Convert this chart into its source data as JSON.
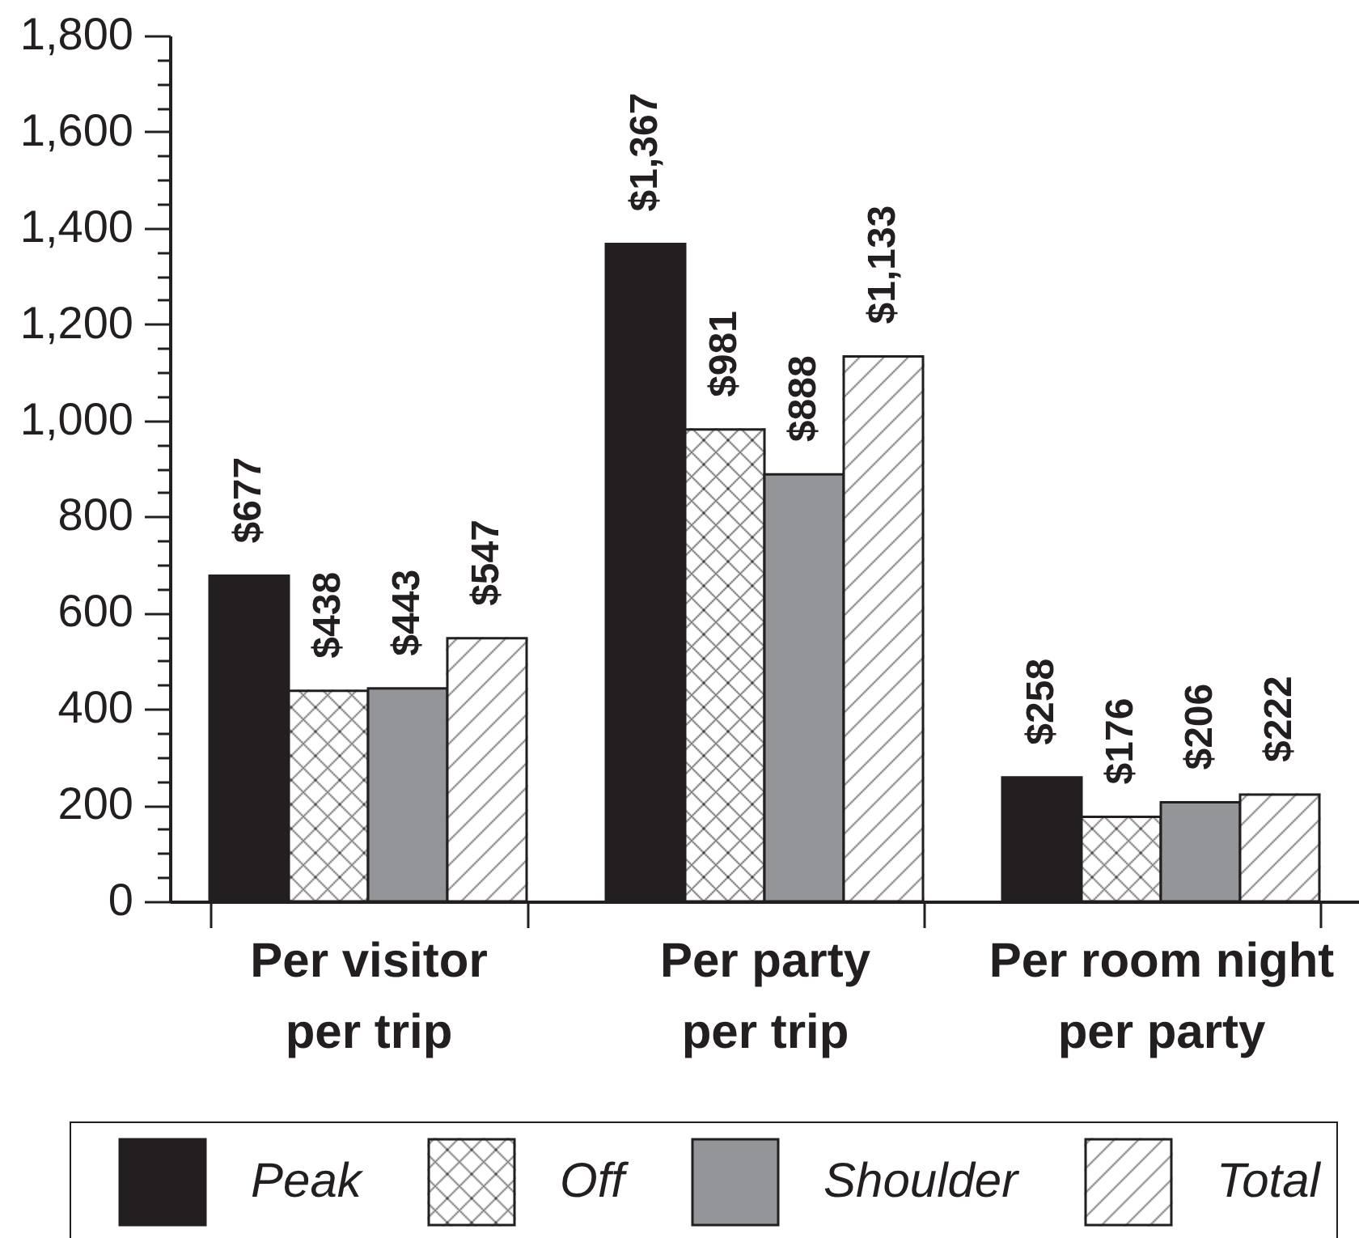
{
  "chart_data": {
    "type": "bar",
    "categories": [
      "Per visitor\nper trip",
      "Per party\nper trip",
      "Per room night\nper party"
    ],
    "series": [
      {
        "name": "Peak",
        "color": "#231f20",
        "values": [
          677,
          1367,
          258
        ],
        "value_labels": [
          "$677",
          "$1,367",
          "$258"
        ]
      },
      {
        "name": "Off",
        "color": "#ffffff",
        "values": [
          438,
          981,
          176
        ],
        "value_labels": [
          "$438",
          "$981",
          "$176"
        ]
      },
      {
        "name": "Shoulder",
        "color": "#939598",
        "values": [
          443,
          888,
          206
        ],
        "value_labels": [
          "$443",
          "$888",
          "$206"
        ]
      },
      {
        "name": "Total",
        "color": "#ffffff",
        "values": [
          547,
          1133,
          222
        ],
        "value_labels": [
          "$547",
          "$1,133",
          "$222"
        ]
      }
    ],
    "ylim": [
      0,
      1800
    ],
    "yticks": [
      0,
      {
        "value": 50,
        "label": null
      },
      {
        "value": 100,
        "label": null
      },
      {
        "value": 150,
        "label": null
      },
      200,
      {
        "value": 250,
        "label": null
      },
      {
        "value": 300,
        "label": null
      },
      {
        "value": 350,
        "label": null
      },
      400,
      {
        "value": 450,
        "label": null
      },
      {
        "value": 500,
        "label": null
      },
      {
        "value": 550,
        "label": null
      },
      600,
      {
        "value": 650,
        "label": null
      },
      {
        "value": 700,
        "label": null
      },
      {
        "value": 750,
        "label": null
      },
      800,
      {
        "value": 850,
        "label": null
      },
      {
        "value": 900,
        "label": null
      },
      {
        "value": 950,
        "label": null
      },
      {
        "value": 1000,
        "label": "1,000"
      },
      {
        "value": 1050,
        "label": null
      },
      {
        "value": 1100,
        "label": null
      },
      {
        "value": 1150,
        "label": null
      },
      {
        "value": 1200,
        "label": "1,200"
      },
      {
        "value": 1250,
        "label": null
      },
      {
        "value": 1300,
        "label": null
      },
      {
        "value": 1350,
        "label": null
      },
      {
        "value": 1400,
        "label": "1,400"
      },
      {
        "value": 1450,
        "label": null
      },
      {
        "value": 1500,
        "label": null
      },
      {
        "value": 1550,
        "label": null
      },
      {
        "value": 1600,
        "label": "1,600"
      },
      {
        "value": 1650,
        "label": null
      },
      {
        "value": 1700,
        "label": null
      },
      {
        "value": 1750,
        "label": null
      },
      {
        "value": 1800,
        "label": "1,800"
      }
    ],
    "legend": "bottom"
  }
}
